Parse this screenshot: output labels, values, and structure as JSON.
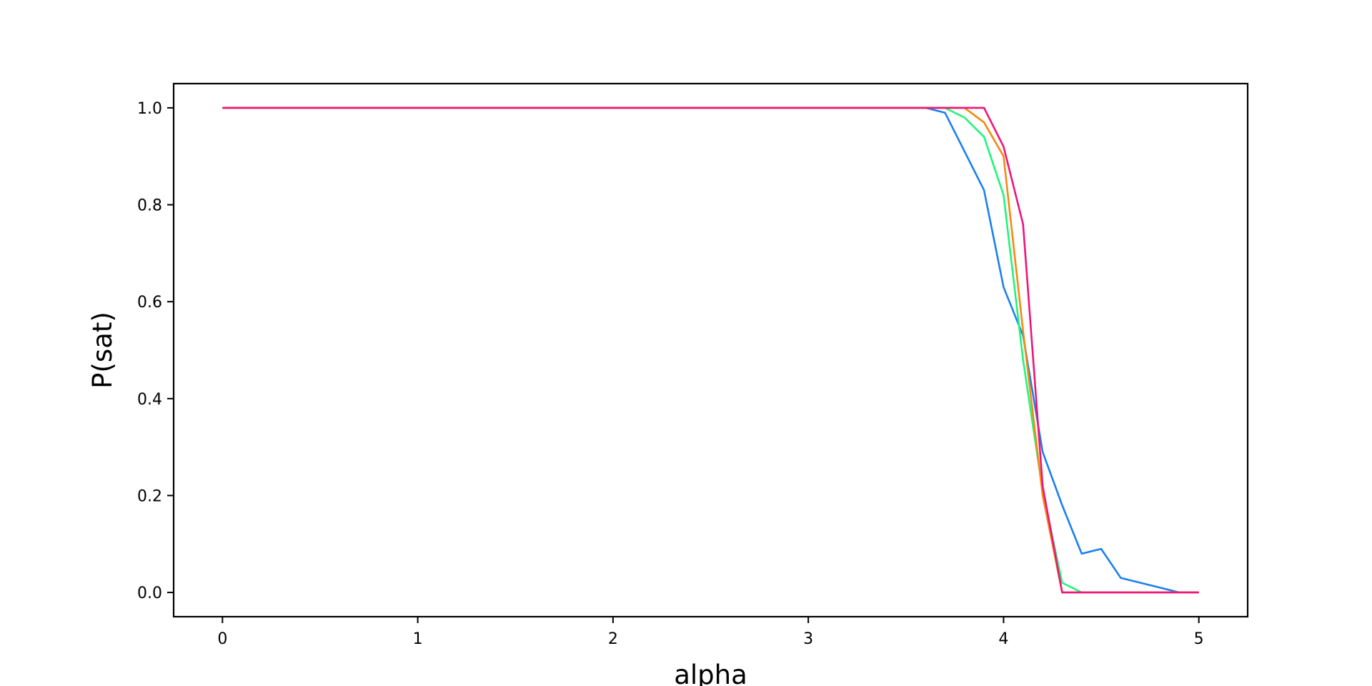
{
  "chart_data": {
    "type": "line",
    "title": "",
    "xlabel": "alpha",
    "ylabel": "P(sat)",
    "xlim": [
      -0.25,
      5.25
    ],
    "ylim": [
      -0.05,
      1.05
    ],
    "xticks": [
      0,
      1,
      2,
      3,
      4,
      5
    ],
    "xtick_labels": [
      "0",
      "1",
      "2",
      "3",
      "4",
      "5"
    ],
    "yticks": [
      0.0,
      0.2,
      0.4,
      0.6,
      0.8,
      1.0
    ],
    "ytick_labels": [
      "0.0",
      "0.2",
      "0.4",
      "0.6",
      "0.8",
      "1.0"
    ],
    "grid": false,
    "x": [
      0.0,
      0.1,
      0.2,
      0.3,
      0.4,
      0.5,
      0.6,
      0.7,
      0.8,
      0.9,
      1.0,
      1.1,
      1.2,
      1.3,
      1.4,
      1.5,
      1.6,
      1.7,
      1.8,
      1.9,
      2.0,
      2.1,
      2.2,
      2.3,
      2.4,
      2.5,
      2.6,
      2.7,
      2.8,
      2.9,
      3.0,
      3.1,
      3.2,
      3.3,
      3.4,
      3.5,
      3.6,
      3.7,
      3.8,
      3.9,
      4.0,
      4.1,
      4.2,
      4.3,
      4.4,
      4.5,
      4.6,
      4.7,
      4.8,
      4.9,
      5.0
    ],
    "series": [
      {
        "color": "#1a80f0",
        "values": [
          1.0,
          1.0,
          1.0,
          1.0,
          1.0,
          1.0,
          1.0,
          1.0,
          1.0,
          1.0,
          1.0,
          1.0,
          1.0,
          1.0,
          1.0,
          1.0,
          1.0,
          1.0,
          1.0,
          1.0,
          1.0,
          1.0,
          1.0,
          1.0,
          1.0,
          1.0,
          1.0,
          1.0,
          1.0,
          1.0,
          1.0,
          1.0,
          1.0,
          1.0,
          1.0,
          1.0,
          1.0,
          0.99,
          0.91,
          0.83,
          0.63,
          0.53,
          0.29,
          0.18,
          0.08,
          0.09,
          0.03,
          0.02,
          0.01,
          0.0,
          0.0
        ]
      },
      {
        "color": "#1ff57a",
        "values": [
          1.0,
          1.0,
          1.0,
          1.0,
          1.0,
          1.0,
          1.0,
          1.0,
          1.0,
          1.0,
          1.0,
          1.0,
          1.0,
          1.0,
          1.0,
          1.0,
          1.0,
          1.0,
          1.0,
          1.0,
          1.0,
          1.0,
          1.0,
          1.0,
          1.0,
          1.0,
          1.0,
          1.0,
          1.0,
          1.0,
          1.0,
          1.0,
          1.0,
          1.0,
          1.0,
          1.0,
          1.0,
          1.0,
          0.98,
          0.94,
          0.82,
          0.48,
          0.21,
          0.02,
          0.0,
          0.0,
          0.0,
          0.0,
          0.0,
          0.0,
          0.0
        ]
      },
      {
        "color": "#f58a0f",
        "values": [
          1.0,
          1.0,
          1.0,
          1.0,
          1.0,
          1.0,
          1.0,
          1.0,
          1.0,
          1.0,
          1.0,
          1.0,
          1.0,
          1.0,
          1.0,
          1.0,
          1.0,
          1.0,
          1.0,
          1.0,
          1.0,
          1.0,
          1.0,
          1.0,
          1.0,
          1.0,
          1.0,
          1.0,
          1.0,
          1.0,
          1.0,
          1.0,
          1.0,
          1.0,
          1.0,
          1.0,
          1.0,
          1.0,
          1.0,
          0.97,
          0.9,
          0.54,
          0.2,
          0.0,
          0.0,
          0.0,
          0.0,
          0.0,
          0.0,
          0.0,
          0.0
        ]
      },
      {
        "color": "#f0147a",
        "values": [
          1.0,
          1.0,
          1.0,
          1.0,
          1.0,
          1.0,
          1.0,
          1.0,
          1.0,
          1.0,
          1.0,
          1.0,
          1.0,
          1.0,
          1.0,
          1.0,
          1.0,
          1.0,
          1.0,
          1.0,
          1.0,
          1.0,
          1.0,
          1.0,
          1.0,
          1.0,
          1.0,
          1.0,
          1.0,
          1.0,
          1.0,
          1.0,
          1.0,
          1.0,
          1.0,
          1.0,
          1.0,
          1.0,
          1.0,
          1.0,
          0.92,
          0.76,
          0.22,
          0.0,
          0.0,
          0.0,
          0.0,
          0.0,
          0.0,
          0.0,
          0.0
        ]
      }
    ]
  }
}
